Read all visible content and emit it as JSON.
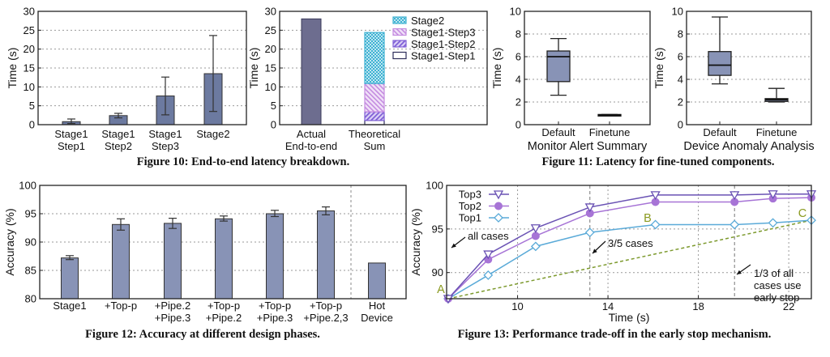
{
  "captions": {
    "fig10": "Figure 10: End-to-end latency breakdown.",
    "fig11": "Figure 11: Latency for fine-tuned components.",
    "fig12": "Figure 12: Accuracy at different design phases.",
    "fig13": "Figure 13: Performance trade-off in the early stop mechanism."
  },
  "colors": {
    "bar": "#6c7aa0",
    "bar_light": "#8893b6",
    "actual": "#6d6d8f",
    "stage2": "#3fb2d2",
    "step3": "#c48be0",
    "step2": "#7f5fd6",
    "step1": "#2d2d5a",
    "top3": "#6a52b4",
    "top2": "#a774d6",
    "top1": "#5aaad8",
    "green": "#7d9a2e"
  },
  "chart_data": [
    {
      "id": "fig10-left",
      "type": "bar",
      "ylabel": "Time (s)",
      "ylim": [
        0,
        30
      ],
      "yticks": [
        0,
        5,
        10,
        15,
        20,
        25,
        30
      ],
      "grid": true,
      "categories": [
        [
          "Stage1",
          "Step1"
        ],
        [
          "Stage1",
          "Step2"
        ],
        [
          "Stage1",
          "Step3"
        ],
        [
          "Stage2"
        ]
      ],
      "values": [
        0.8,
        2.4,
        7.6,
        13.5
      ],
      "error_low": [
        0.3,
        1.8,
        2.6,
        3.5
      ],
      "error_high": [
        1.5,
        3.0,
        12.6,
        23.6
      ]
    },
    {
      "id": "fig10-right",
      "type": "bar",
      "ylabel": "Time (s)",
      "ylim": [
        0,
        30
      ],
      "yticks": [
        0,
        5,
        10,
        15,
        20,
        25,
        30
      ],
      "grid": true,
      "categories": [
        [
          "Actual",
          "End-to-end"
        ],
        [
          "Theoretical",
          "Sum"
        ]
      ],
      "actual": 28.0,
      "stacked": [
        {
          "name": "Stage1-Step1",
          "value": 1.1
        },
        {
          "name": "Stage1-Step2",
          "value": 2.3
        },
        {
          "name": "Stage1-Step3",
          "value": 7.5
        },
        {
          "name": "Stage2",
          "value": 13.5
        }
      ],
      "legend": [
        "Stage2",
        "Stage1-Step3",
        "Stage1-Step2",
        "Stage1-Step1"
      ],
      "legend_position": "top-right"
    },
    {
      "id": "fig11-left",
      "type": "box",
      "ylabel": "Time (s)",
      "ylim": [
        0,
        10
      ],
      "yticks": [
        0,
        2,
        4,
        6,
        8,
        10
      ],
      "grid": true,
      "categories": [
        "Default",
        "Finetune"
      ],
      "xlabel": "Monitor Alert Summary",
      "boxes": [
        {
          "min": 2.6,
          "q1": 3.8,
          "median": 6.0,
          "q3": 6.5,
          "max": 7.6
        },
        {
          "min": 0.8,
          "q1": 0.8,
          "median": 0.85,
          "q3": 0.9,
          "max": 0.9
        }
      ]
    },
    {
      "id": "fig11-right",
      "type": "box",
      "ylabel": "Time (s)",
      "ylim": [
        0,
        10
      ],
      "yticks": [
        0,
        2,
        4,
        6,
        8,
        10
      ],
      "grid": true,
      "categories": [
        "Default",
        "Finetune"
      ],
      "xlabel": "Device Anomaly Analysis",
      "boxes": [
        {
          "min": 3.6,
          "q1": 4.35,
          "median": 5.25,
          "q3": 6.45,
          "max": 9.5
        },
        {
          "min": 2.0,
          "q1": 2.05,
          "median": 2.2,
          "q3": 2.3,
          "max": 3.2
        }
      ]
    },
    {
      "id": "fig12",
      "type": "bar",
      "ylabel": "Accuracy (%)",
      "ylim": [
        80,
        100
      ],
      "yticks": [
        80,
        85,
        90,
        95,
        100
      ],
      "grid": true,
      "categories": [
        [
          "Stage1"
        ],
        [
          "+Top-p"
        ],
        [
          "+Pipe.2",
          "+Pipe.3"
        ],
        [
          "+Top-p",
          "+Pipe.2"
        ],
        [
          "+Top-p",
          "+Pipe.3"
        ],
        [
          "+Top-p",
          "+Pipe.2,3"
        ],
        [
          "Hot",
          "Device"
        ]
      ],
      "values": [
        87.2,
        93.1,
        93.3,
        94.1,
        95.0,
        95.5,
        86.3
      ],
      "error_low": [
        86.9,
        92.1,
        92.4,
        93.7,
        94.5,
        94.8,
        null
      ],
      "error_high": [
        87.6,
        94.1,
        94.2,
        94.6,
        95.6,
        96.2,
        null
      ]
    },
    {
      "id": "fig13",
      "type": "line",
      "xlabel": "Time (s)",
      "ylabel": "Accuracy (%)",
      "xlim": [
        6.86,
        23.0
      ],
      "ylim": [
        87,
        100
      ],
      "xticks": [
        10,
        14,
        18,
        22
      ],
      "yticks": [
        90,
        95,
        100
      ],
      "grid": true,
      "legend_position": "top-left",
      "x": [
        6.93,
        8.7,
        10.8,
        13.2,
        16.1,
        19.6,
        21.3,
        23.0
      ],
      "series": [
        {
          "name": "Top3",
          "marker": "triangle-down",
          "values": [
            87.0,
            92.1,
            95.1,
            97.5,
            98.9,
            98.9,
            99.0,
            99.0
          ]
        },
        {
          "name": "Top2",
          "marker": "circle",
          "values": [
            87.0,
            91.5,
            94.2,
            96.8,
            98.1,
            98.1,
            98.5,
            98.6
          ]
        },
        {
          "name": "Top1",
          "marker": "diamond",
          "values": [
            87.0,
            89.7,
            93.0,
            94.6,
            95.5,
            95.5,
            95.7,
            96.0
          ]
        }
      ],
      "trend_line": {
        "from": [
          6.93,
          87.0
        ],
        "to": [
          23.0,
          96.0
        ]
      },
      "vlines": [
        13.2,
        19.6
      ],
      "point_labels": [
        {
          "text": "A",
          "x": 6.93,
          "y": 87.0
        },
        {
          "text": "B",
          "x": 16.1,
          "y": 95.5
        },
        {
          "text": "C",
          "x": 23.0,
          "y": 96.0
        }
      ],
      "annotations": [
        [
          "all cases"
        ],
        [
          "3/5 cases"
        ],
        [
          "1/3 of all",
          "cases use",
          "early stop"
        ]
      ]
    }
  ]
}
